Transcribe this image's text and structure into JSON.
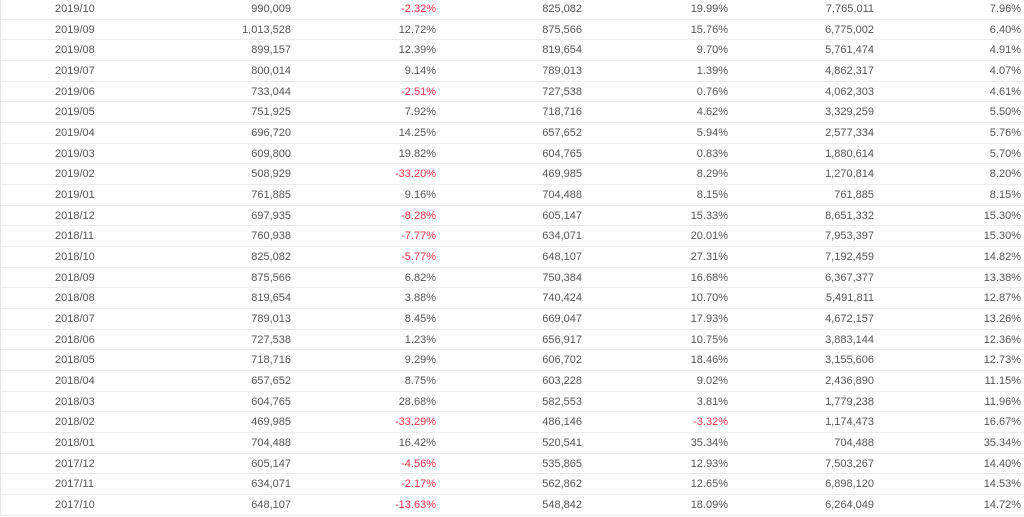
{
  "colors": {
    "text": "#555555",
    "negative": "#f0334b",
    "divider": "#ececec"
  },
  "table": {
    "rows": [
      [
        "2019/10",
        "990,009",
        "-2.32%",
        "825,082",
        "19.99%",
        "7,765,011",
        "7.96%"
      ],
      [
        "2019/09",
        "1,013,528",
        "12.72%",
        "875,566",
        "15.76%",
        "6,775,002",
        "6.40%"
      ],
      [
        "2019/08",
        "899,157",
        "12.39%",
        "819,654",
        "9.70%",
        "5,761,474",
        "4.91%"
      ],
      [
        "2019/07",
        "800,014",
        "9.14%",
        "789,013",
        "1.39%",
        "4,862,317",
        "4.07%"
      ],
      [
        "2019/06",
        "733,044",
        "-2.51%",
        "727,538",
        "0.76%",
        "4,062,303",
        "4.61%"
      ],
      [
        "2019/05",
        "751,925",
        "7.92%",
        "718,716",
        "4.62%",
        "3,329,259",
        "5.50%"
      ],
      [
        "2019/04",
        "696,720",
        "14.25%",
        "657,652",
        "5.94%",
        "2,577,334",
        "5.76%"
      ],
      [
        "2019/03",
        "609,800",
        "19.82%",
        "604,765",
        "0.83%",
        "1,880,614",
        "5.70%"
      ],
      [
        "2019/02",
        "508,929",
        "-33.20%",
        "469,985",
        "8.29%",
        "1,270,814",
        "8.20%"
      ],
      [
        "2019/01",
        "761,885",
        "9.16%",
        "704,488",
        "8.15%",
        "761,885",
        "8.15%"
      ],
      [
        "2018/12",
        "697,935",
        "-8.28%",
        "605,147",
        "15.33%",
        "8,651,332",
        "15.30%"
      ],
      [
        "2018/11",
        "760,938",
        "-7.77%",
        "634,071",
        "20.01%",
        "7,953,397",
        "15.30%"
      ],
      [
        "2018/10",
        "825,082",
        "-5.77%",
        "648,107",
        "27.31%",
        "7,192,459",
        "14.82%"
      ],
      [
        "2018/09",
        "875,566",
        "6.82%",
        "750,384",
        "16.68%",
        "6,367,377",
        "13.38%"
      ],
      [
        "2018/08",
        "819,654",
        "3.88%",
        "740,424",
        "10.70%",
        "5,491,811",
        "12.87%"
      ],
      [
        "2018/07",
        "789,013",
        "8.45%",
        "669,047",
        "17.93%",
        "4,672,157",
        "13.26%"
      ],
      [
        "2018/06",
        "727,538",
        "1.23%",
        "656,917",
        "10.75%",
        "3,883,144",
        "12.36%"
      ],
      [
        "2018/05",
        "718,716",
        "9.29%",
        "606,702",
        "18.46%",
        "3,155,606",
        "12.73%"
      ],
      [
        "2018/04",
        "657,652",
        "8.75%",
        "603,228",
        "9.02%",
        "2,436,890",
        "11.15%"
      ],
      [
        "2018/03",
        "604,765",
        "28.68%",
        "582,553",
        "3.81%",
        "1,779,238",
        "11.96%"
      ],
      [
        "2018/02",
        "469,985",
        "-33.29%",
        "486,146",
        "-3.32%",
        "1,174,473",
        "16.67%"
      ],
      [
        "2018/01",
        "704,488",
        "16.42%",
        "520,541",
        "35.34%",
        "704,488",
        "35.34%"
      ],
      [
        "2017/12",
        "605,147",
        "-4.56%",
        "535,865",
        "12.93%",
        "7,503,267",
        "14.40%"
      ],
      [
        "2017/11",
        "634,071",
        "-2.17%",
        "562,862",
        "12.65%",
        "6,898,120",
        "14.53%"
      ],
      [
        "2017/10",
        "648,107",
        "-13.63%",
        "548,842",
        "18.09%",
        "6,264,049",
        "14.72%"
      ]
    ]
  }
}
